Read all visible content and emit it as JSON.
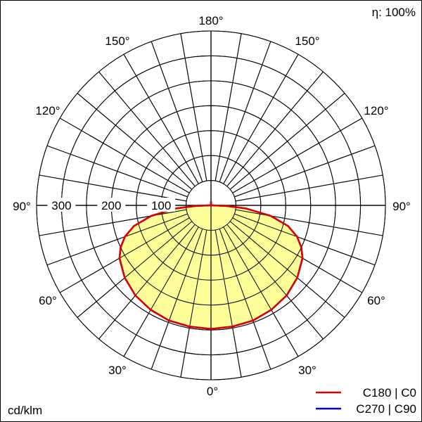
{
  "chart_data": {
    "type": "polar",
    "efficiency_label": "η: 100%",
    "unit_label": "cd/klm",
    "radial_ticks": [
      100,
      200,
      300
    ],
    "radial_max": 350,
    "angle_labels": {
      "bottom": "0°",
      "top": "180°",
      "left_30": "30°",
      "right_30": "30°",
      "left_60": "60°",
      "right_60": "60°",
      "left_90": "90°",
      "right_90": "90°",
      "left_120": "120°",
      "right_120": "120°",
      "left_150": "150°",
      "right_150": "150°"
    },
    "series": [
      {
        "name": "C180 | C0",
        "color": "#e00000",
        "angles_deg": [
          0,
          10,
          20,
          30,
          40,
          50,
          60,
          65,
          70,
          75,
          80,
          85,
          88,
          90,
          92,
          95,
          100,
          110,
          120,
          130,
          140,
          150,
          160,
          170,
          175,
          178,
          180
        ],
        "values": [
          248,
          247,
          246,
          242,
          236,
          226,
          212,
          200,
          184,
          160,
          122,
          70,
          30,
          2,
          0,
          0,
          0,
          0,
          0,
          0,
          0,
          0,
          0,
          0,
          2,
          6,
          8
        ]
      },
      {
        "name": "C270 | C90",
        "color": "#0000b0",
        "angles_deg": [
          0,
          10,
          20,
          30,
          40,
          50,
          60,
          65,
          70,
          75,
          80,
          85,
          88,
          90,
          92,
          95,
          100,
          110,
          120,
          130,
          140,
          150,
          160,
          170,
          175,
          178,
          180
        ],
        "values": [
          248,
          247,
          246,
          242,
          236,
          226,
          212,
          200,
          184,
          160,
          122,
          70,
          30,
          2,
          0,
          0,
          0,
          0,
          0,
          0,
          0,
          0,
          0,
          0,
          2,
          6,
          8
        ]
      }
    ]
  }
}
